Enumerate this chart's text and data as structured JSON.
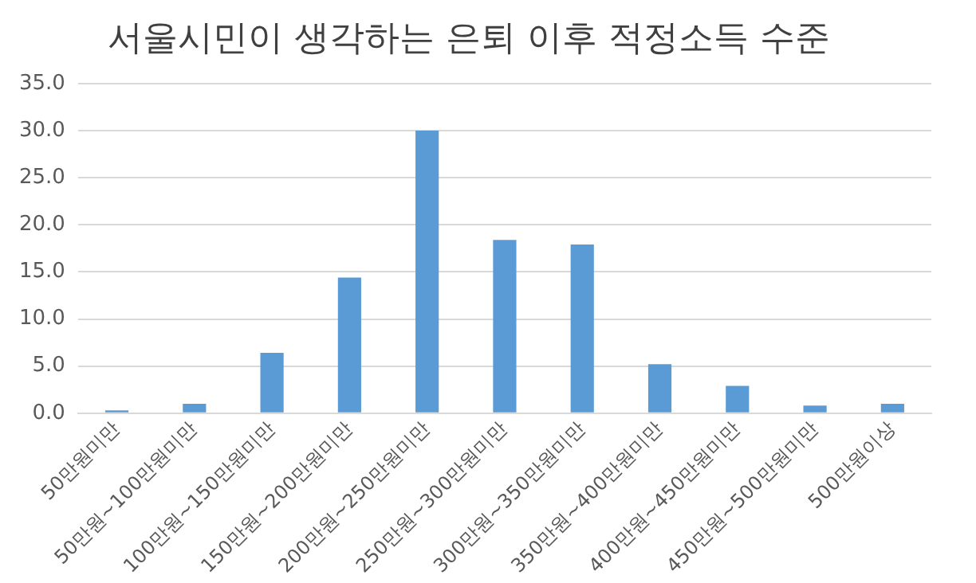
{
  "chart_data": {
    "type": "bar",
    "title": "서울시민이 생각하는 은퇴 이후 적정소득 수준",
    "categories": [
      "50만원미만",
      "50만원~100만원미만",
      "100만원~150만원미만",
      "150만원~200만원미만",
      "200만원~250만원미만",
      "250만원~300만원미만",
      "300만원~350만원미만",
      "350만원~400만원미만",
      "400만원~450만원미만",
      "450만원~500만원미만",
      "500만원이상"
    ],
    "values": [
      0.3,
      1.0,
      6.4,
      14.4,
      30.0,
      18.4,
      17.9,
      5.2,
      2.9,
      0.8,
      1.0
    ],
    "color": "#5b9bd5",
    "ylim": [
      0,
      35
    ],
    "yticks": [
      {
        "value": 0,
        "label": "0.0"
      },
      {
        "value": 5,
        "label": "5.0"
      },
      {
        "value": 10,
        "label": "10.0"
      },
      {
        "value": 15,
        "label": "15.0"
      },
      {
        "value": 20,
        "label": "20.0"
      },
      {
        "value": 25,
        "label": "25.0"
      },
      {
        "value": 30,
        "label": "30.0"
      },
      {
        "value": 35,
        "label": "35.0"
      }
    ],
    "grid": "y"
  }
}
